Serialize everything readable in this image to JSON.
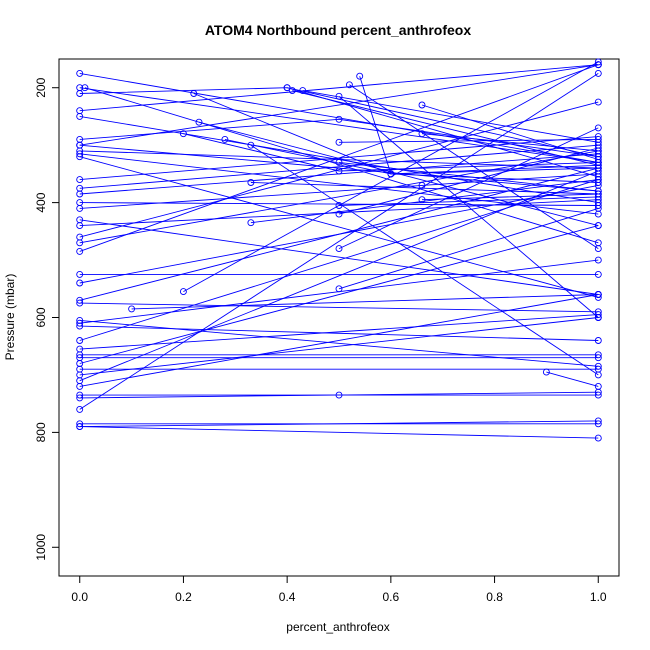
{
  "chart_data": {
    "type": "scatter",
    "title": "ATOM4 Northbound percent_anthrofeox",
    "xlabel": "percent_anthrofeox",
    "ylabel": "Pressure (mbar)",
    "xlim": [
      -0.04,
      1.04
    ],
    "ylim": [
      1050,
      150
    ],
    "y_reversed": true,
    "x_ticks": [
      "0.0",
      "0.2",
      "0.4",
      "0.6",
      "0.8",
      "1.0"
    ],
    "y_ticks": [
      "200",
      "400",
      "600",
      "800",
      "1000"
    ],
    "grid": false,
    "legend": "none",
    "color": "#0000ff",
    "series": [
      {
        "x": [
          0.0,
          1.0
        ],
        "y": [
          175,
          330
        ]
      },
      {
        "x": [
          0.0,
          1.0
        ],
        "y": [
          200,
          330
        ]
      },
      {
        "x": [
          0.0,
          0.4,
          1.0
        ],
        "y": [
          210,
          200,
          355
        ]
      },
      {
        "x": [
          0.0,
          1.0
        ],
        "y": [
          240,
          160
        ]
      },
      {
        "x": [
          0.0,
          1.0
        ],
        "y": [
          250,
          400
        ]
      },
      {
        "x": [
          0.0,
          0.5,
          1.0
        ],
        "y": [
          290,
          255,
          320
        ]
      },
      {
        "x": [
          0.0,
          1.0
        ],
        "y": [
          300,
          380
        ]
      },
      {
        "x": [
          0.0,
          1.0
        ],
        "y": [
          310,
          340
        ]
      },
      {
        "x": [
          0.0,
          1.0
        ],
        "y": [
          315,
          420
        ]
      },
      {
        "x": [
          0.0,
          1.0
        ],
        "y": [
          375,
          300
        ]
      },
      {
        "x": [
          0.0,
          1.0
        ],
        "y": [
          385,
          315
        ]
      },
      {
        "x": [
          0.0,
          1.0
        ],
        "y": [
          400,
          405
        ]
      },
      {
        "x": [
          0.0,
          0.66,
          1.0
        ],
        "y": [
          410,
          370,
          350
        ]
      },
      {
        "x": [
          0.0,
          1.0
        ],
        "y": [
          430,
          560
        ]
      },
      {
        "x": [
          0.0,
          1.0
        ],
        "y": [
          460,
          225
        ]
      },
      {
        "x": [
          0.0,
          1.0
        ],
        "y": [
          470,
          310
        ]
      },
      {
        "x": [
          0.0,
          1.0
        ],
        "y": [
          485,
          160
        ]
      },
      {
        "x": [
          0.0,
          1.0
        ],
        "y": [
          525,
          525
        ]
      },
      {
        "x": [
          0.0,
          1.0
        ],
        "y": [
          570,
          340
        ]
      },
      {
        "x": [
          0.0,
          1.0
        ],
        "y": [
          575,
          590
        ]
      },
      {
        "x": [
          0.0,
          1.0
        ],
        "y": [
          610,
          500
        ]
      },
      {
        "x": [
          0.0,
          1.0
        ],
        "y": [
          615,
          640
        ]
      },
      {
        "x": [
          0.0,
          1.0
        ],
        "y": [
          640,
          360
        ]
      },
      {
        "x": [
          0.0,
          1.0
        ],
        "y": [
          665,
          665
        ]
      },
      {
        "x": [
          0.0,
          1.0
        ],
        "y": [
          670,
          670
        ]
      },
      {
        "x": [
          0.0,
          1.0
        ],
        "y": [
          680,
          440
        ]
      },
      {
        "x": [
          0.0,
          1.0
        ],
        "y": [
          690,
          690
        ]
      },
      {
        "x": [
          0.0,
          1.0
        ],
        "y": [
          700,
          600
        ]
      },
      {
        "x": [
          0.0,
          0.5,
          1.0
        ],
        "y": [
          735,
          735,
          735
        ]
      },
      {
        "x": [
          0.0,
          1.0
        ],
        "y": [
          740,
          730
        ]
      },
      {
        "x": [
          0.0,
          1.0
        ],
        "y": [
          785,
          785
        ]
      },
      {
        "x": [
          0.0,
          1.0
        ],
        "y": [
          790,
          780
        ]
      },
      {
        "x": [
          0.01,
          1.0
        ],
        "y": [
          200,
          470
        ]
      },
      {
        "x": [
          0.1,
          1.0
        ],
        "y": [
          585,
          560
        ]
      },
      {
        "x": [
          0.2,
          0.5,
          1.0
        ],
        "y": [
          280,
          345,
          330
        ]
      },
      {
        "x": [
          0.2,
          1.0
        ],
        "y": [
          555,
          155
        ]
      },
      {
        "x": [
          0.22,
          0.6,
          1.0
        ],
        "y": [
          210,
          350,
          365
        ]
      },
      {
        "x": [
          0.23,
          1.0
        ],
        "y": [
          260,
          440
        ]
      },
      {
        "x": [
          0.28,
          0.6,
          1.0
        ],
        "y": [
          290,
          350,
          335
        ]
      },
      {
        "x": [
          0.33,
          1.0
        ],
        "y": [
          300,
          700
        ]
      },
      {
        "x": [
          0.33,
          1.0
        ],
        "y": [
          365,
          385
        ]
      },
      {
        "x": [
          0.33,
          1.0
        ],
        "y": [
          435,
          360
        ]
      },
      {
        "x": [
          0.4,
          1.0
        ],
        "y": [
          200,
          320
        ]
      },
      {
        "x": [
          0.41,
          1.0
        ],
        "y": [
          205,
          335
        ]
      },
      {
        "x": [
          0.43,
          1.0
        ],
        "y": [
          205,
          295
        ]
      },
      {
        "x": [
          0.5,
          1.0
        ],
        "y": [
          215,
          600
        ]
      },
      {
        "x": [
          0.5,
          1.0
        ],
        "y": [
          295,
          290
        ]
      },
      {
        "x": [
          0.5,
          1.0
        ],
        "y": [
          330,
          380
        ]
      },
      {
        "x": [
          0.5,
          1.0
        ],
        "y": [
          405,
          390
        ]
      },
      {
        "x": [
          0.5,
          1.0
        ],
        "y": [
          420,
          305
        ]
      },
      {
        "x": [
          0.5,
          1.0
        ],
        "y": [
          480,
          270
        ]
      },
      {
        "x": [
          0.5,
          1.0
        ],
        "y": [
          550,
          410
        ]
      },
      {
        "x": [
          0.52,
          1.0
        ],
        "y": [
          195,
          480
        ]
      },
      {
        "x": [
          0.54,
          0.6,
          1.0
        ],
        "y": [
          180,
          350,
          340
        ]
      },
      {
        "x": [
          0.66,
          1.0
        ],
        "y": [
          230,
          325
        ]
      },
      {
        "x": [
          0.66,
          1.0
        ],
        "y": [
          280,
          310
        ]
      },
      {
        "x": [
          0.66,
          1.0
        ],
        "y": [
          395,
          385
        ]
      },
      {
        "x": [
          0.9,
          1.0
        ],
        "y": [
          695,
          720
        ]
      },
      {
        "x": [
          0.0,
          1.0
        ],
        "y": [
          300,
          160
        ]
      },
      {
        "x": [
          0.0,
          1.0
        ],
        "y": [
          320,
          565
        ]
      },
      {
        "x": [
          0.0,
          1.0
        ],
        "y": [
          360,
          285
        ]
      },
      {
        "x": [
          0.0,
          1.0
        ],
        "y": [
          440,
          395
        ]
      },
      {
        "x": [
          0.0,
          1.0
        ],
        "y": [
          540,
          370
        ]
      },
      {
        "x": [
          0.0,
          1.0
        ],
        "y": [
          605,
          685
        ]
      },
      {
        "x": [
          0.0,
          1.0
        ],
        "y": [
          655,
          595
        ]
      },
      {
        "x": [
          0.0,
          1.0
        ],
        "y": [
          710,
          345
        ]
      },
      {
        "x": [
          0.0,
          1.0
        ],
        "y": [
          720,
          560
        ]
      },
      {
        "x": [
          0.0,
          1.0
        ],
        "y": [
          760,
          175
        ]
      },
      {
        "x": [
          0.0,
          1.0
        ],
        "y": [
          790,
          810
        ]
      }
    ]
  }
}
